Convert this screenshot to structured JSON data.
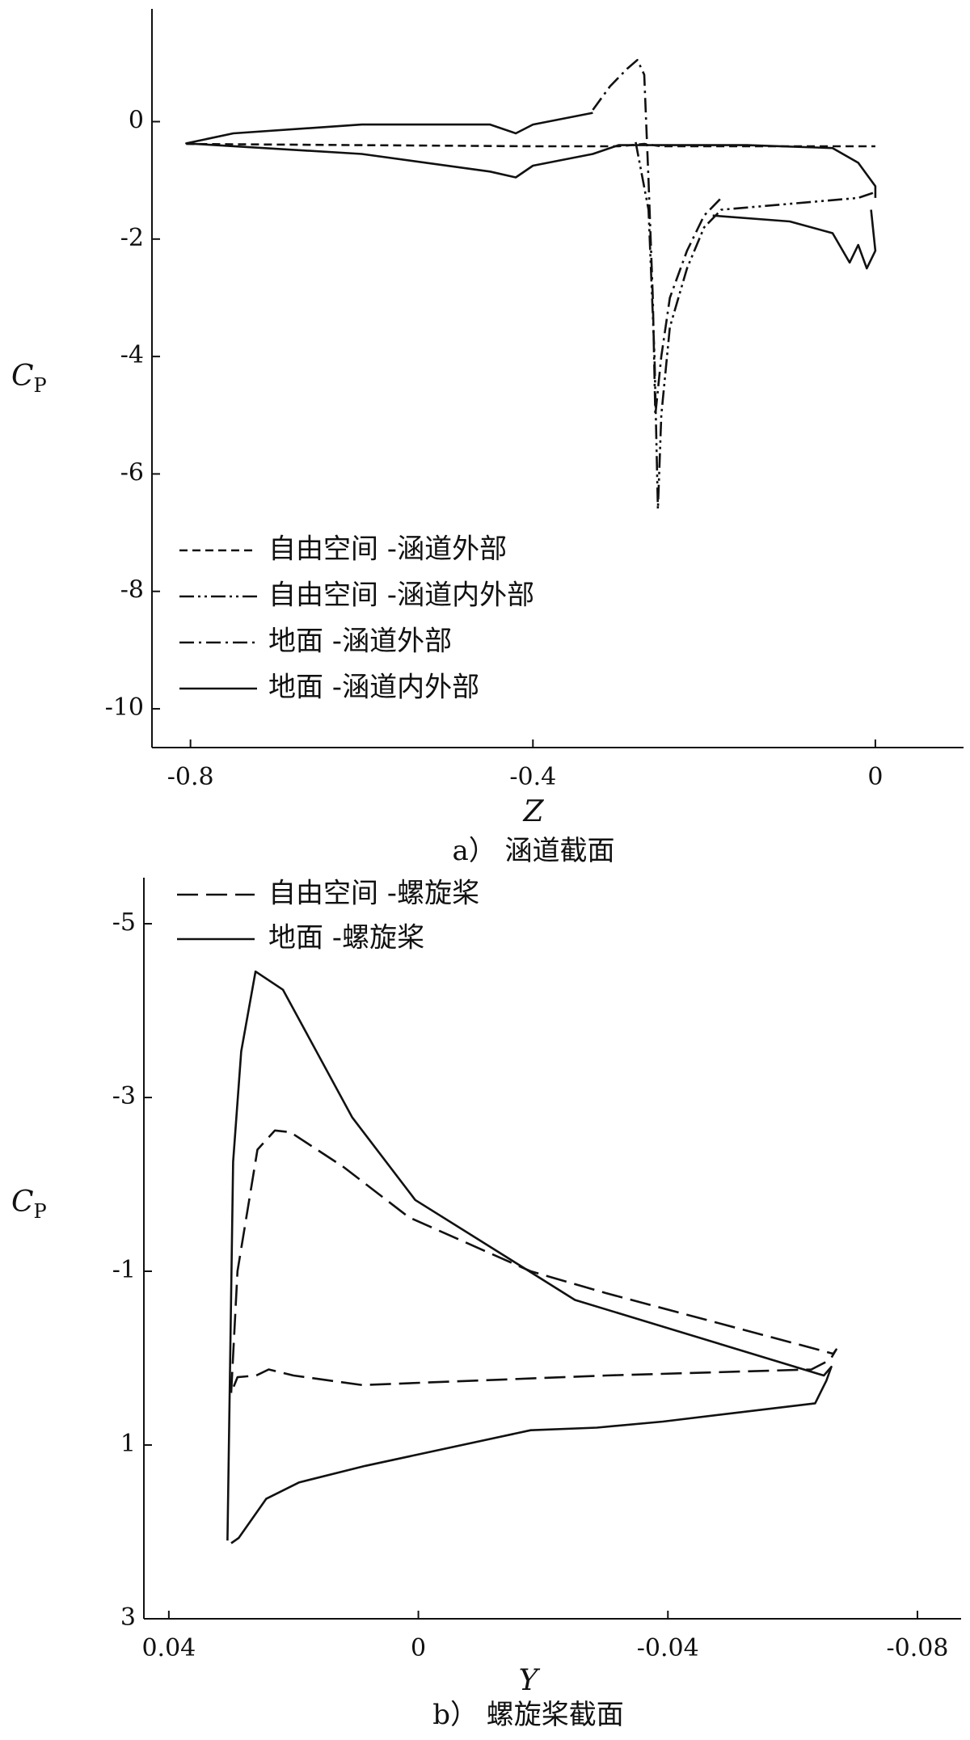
{
  "chart_data": [
    {
      "type": "line",
      "caption": "a） 涵道截面",
      "xlabel": "Z",
      "ylabel": "C",
      "ylabel_sub": "P",
      "xlim": [
        -0.845,
        0.103
      ],
      "xticks": [
        -0.8,
        -0.4,
        0
      ],
      "ylim": [
        -10.66,
        1.92
      ],
      "yticks": [
        0,
        -2,
        -4,
        -6,
        -8,
        -10
      ],
      "legend": "lower-left",
      "series": [
        {
          "name": "自由空间 -涵道外部",
          "style": "dashed",
          "color": "#111",
          "x": [
            -0.805,
            -0.6,
            -0.4,
            -0.3,
            -0.27,
            -0.25,
            -0.1,
            0
          ],
          "values": [
            -0.38,
            -0.4,
            -0.42,
            -0.42,
            -0.38,
            -0.42,
            -0.42,
            -0.42
          ]
        },
        {
          "name": "自由空间 -涵道内外部",
          "style": "dash-dot-dot",
          "color": "#111",
          "x": [
            -0.28,
            -0.265,
            -0.258,
            -0.254,
            -0.25,
            -0.24,
            -0.22,
            -0.2,
            -0.18,
            -0.1,
            -0.02,
            0
          ],
          "values": [
            -0.35,
            -1.5,
            -4,
            -6.6,
            -5,
            -3.5,
            -2.5,
            -1.8,
            -1.5,
            -1.4,
            -1.3,
            -1.2
          ]
        },
        {
          "name": "地面 -涵道外部",
          "style": "dash-dot",
          "color": "#111",
          "x": [
            -0.33,
            -0.31,
            -0.29,
            -0.278,
            -0.27,
            -0.265,
            -0.26,
            -0.257,
            -0.25,
            -0.24,
            -0.22,
            -0.2,
            -0.18
          ],
          "values": [
            0.2,
            0.6,
            0.9,
            1.05,
            0.8,
            -1,
            -3,
            -5,
            -4,
            -3,
            -2.2,
            -1.6,
            -1.3
          ]
        },
        {
          "name": "地面 -涵道内外部",
          "style": "solid",
          "color": "#111",
          "x": [
            -0.33,
            -0.4,
            -0.42,
            -0.45,
            -0.6,
            -0.75,
            -0.805,
            -0.6,
            -0.45,
            -0.42,
            -0.4,
            -0.33,
            -0.3,
            -0.27,
            -0.15,
            -0.05,
            -0.02,
            0,
            0,
            null,
            -0.19,
            -0.1,
            -0.05,
            -0.03,
            -0.02,
            -0.01,
            0,
            -0.005
          ],
          "values": [
            0.15,
            -0.05,
            -0.2,
            -0.05,
            -0.05,
            -0.2,
            -0.37,
            -0.55,
            -0.85,
            -0.95,
            -0.75,
            -0.55,
            -0.4,
            -0.4,
            -0.4,
            -0.45,
            -0.7,
            -1.1,
            -1.3,
            null,
            -1.6,
            -1.7,
            -1.9,
            -2.4,
            -2.1,
            -2.5,
            -2.2,
            -1.5
          ]
        }
      ]
    },
    {
      "type": "line",
      "caption": "b） 螺旋桨截面",
      "xlabel": "Y",
      "ylabel": "C",
      "ylabel_sub": "P",
      "xlim": [
        0.044,
        -0.087
      ],
      "xticks": [
        0.04,
        0,
        -0.04,
        -0.08
      ],
      "ylim": [
        3,
        -5.53
      ],
      "yticks": [
        -5,
        -3,
        -1,
        1,
        3
      ],
      "legend": "upper-left",
      "series": [
        {
          "name": "自由空间 -螺旋桨",
          "style": "long-dashed",
          "color": "#111",
          "x": [
            0.03,
            0.029,
            0.0258,
            0.023,
            0.0205,
            0.012,
            0.0015,
            -0.018,
            -0.03,
            -0.065,
            -0.0665,
            -0.067,
            -0.066,
            -0.063,
            -0.03,
            0.009,
            0.02,
            0.024,
            0.026,
            0.029,
            0.03
          ],
          "values": [
            0.4,
            -1.0,
            -2.4,
            -2.62,
            -2.6,
            -2.2,
            -1.62,
            -1.0,
            -0.75,
            -0.08,
            -0.05,
            -0.1,
            0.02,
            0.13,
            0.2,
            0.31,
            0.2,
            0.13,
            0.2,
            0.22,
            0.4
          ]
        },
        {
          "name": "地面 -螺旋桨",
          "style": "solid",
          "color": "#111",
          "x": [
            0.0306,
            0.0297,
            0.0284,
            0.0261,
            0.0217,
            0.0106,
            0.0005,
            -0.018,
            -0.0251,
            -0.065,
            -0.0662,
            -0.0654,
            -0.0636,
            -0.0392,
            -0.0286,
            -0.018,
            0.0085,
            0.0191,
            0.0244,
            0.0288,
            0.03
          ],
          "values": [
            2.1,
            -2.26,
            -3.53,
            -4.45,
            -4.24,
            -2.77,
            -1.82,
            -0.99,
            -0.67,
            0.2,
            0.1,
            0.26,
            0.52,
            0.73,
            0.8,
            0.83,
            1.24,
            1.43,
            1.62,
            2.07,
            2.13
          ]
        }
      ]
    }
  ]
}
